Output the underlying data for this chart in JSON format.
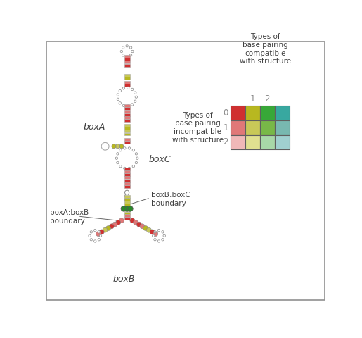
{
  "legend_title_compatible": "Types of\nbase pairing\ncompatible\nwith structure",
  "legend_title_incompatible": "Types of\nbase pairing\nincompatible\nwith structure",
  "col_labels": [
    "1",
    "2"
  ],
  "row_labels": [
    "0",
    "1",
    "2"
  ],
  "colors": [
    [
      "#d03030",
      "#b8b820",
      "#38a838",
      "#38a8a0"
    ],
    [
      "#e07878",
      "#c8c858",
      "#78b848",
      "#78b8b0"
    ],
    [
      "#f0b8b8",
      "#e0e090",
      "#a8d8a8",
      "#a0d0d0"
    ]
  ],
  "background_color": "#ffffff",
  "border_color": "#606060",
  "label_color": "#404040",
  "boxa_label": "boxA",
  "boxb_label": "boxB",
  "boxc_label": "boxC",
  "boxab_label": "boxA:boxB\nboundary",
  "boxbc_label": "boxB:boxC\nboundary"
}
